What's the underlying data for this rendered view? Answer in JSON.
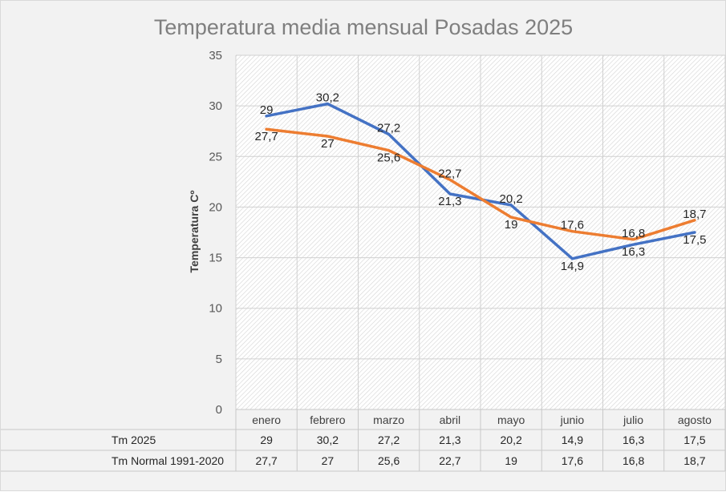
{
  "chart_data": {
    "type": "line",
    "title": "Temperatura media mensual Posadas 2025",
    "ylabel": "Temperatura Cº",
    "xlabel": "",
    "ylim": [
      0,
      35
    ],
    "yticks": [
      0,
      5,
      10,
      15,
      20,
      25,
      30,
      35
    ],
    "categories": [
      "enero",
      "febrero",
      "marzo",
      "abril",
      "mayo",
      "junio",
      "julio",
      "agosto"
    ],
    "series": [
      {
        "name": "Tm 2025",
        "color": "#4472c4",
        "values": [
          29,
          30.2,
          27.2,
          21.3,
          20.2,
          14.9,
          16.3,
          17.5
        ],
        "labels": [
          "29",
          "30,2",
          "27,2",
          "21,3",
          "20,2",
          "14,9",
          "16,3",
          "17,5"
        ]
      },
      {
        "name": "Tm Normal 1991-2020",
        "color": "#ed7d31",
        "values": [
          27.7,
          27,
          25.6,
          22.7,
          19,
          17.6,
          16.8,
          18.7
        ],
        "labels": [
          "27,7",
          "27",
          "25,6",
          "22,7",
          "19",
          "17,6",
          "16,8",
          "18,7"
        ]
      }
    ],
    "grid": true,
    "legend": "data-table",
    "data_table": true
  }
}
